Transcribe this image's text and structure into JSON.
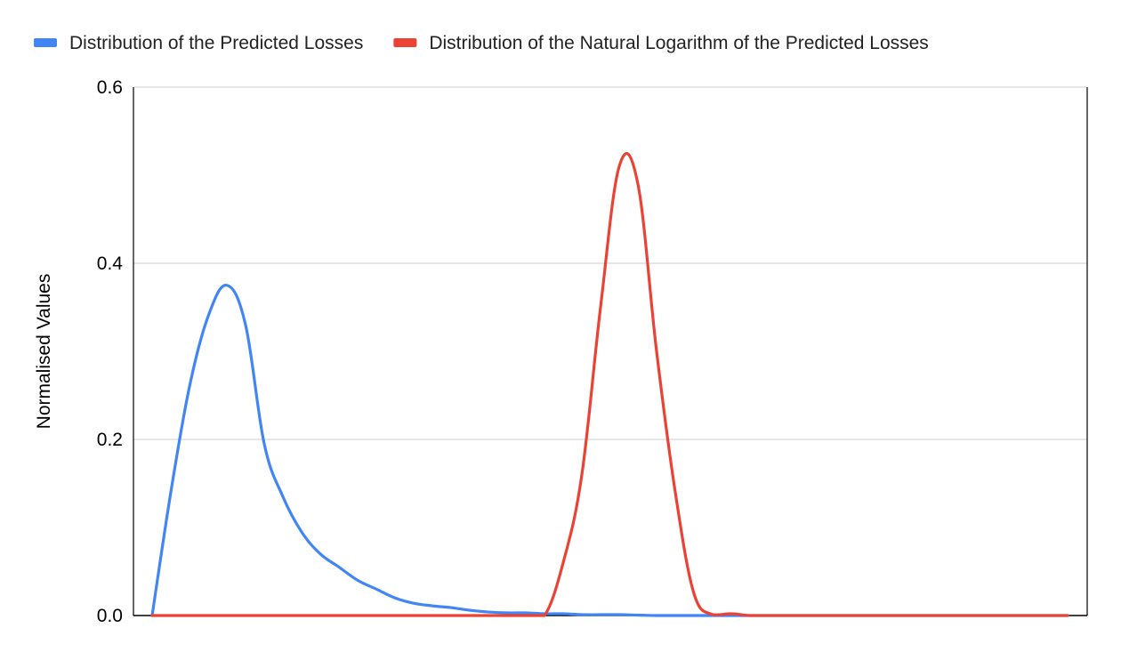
{
  "chart_data": {
    "type": "line",
    "title": "",
    "xlabel": "",
    "ylabel": "Normalised Values",
    "ylim": [
      0,
      0.6
    ],
    "yticks": [
      "0.0",
      "0.2",
      "0.4",
      "0.6"
    ],
    "grid": true,
    "legend_position": "top-left",
    "series": [
      {
        "name": "Distribution of the Predicted Losses",
        "color": "#4285f4",
        "values": [
          0,
          0.14,
          0.26,
          0.34,
          0.375,
          0.33,
          0.195,
          0.135,
          0.095,
          0.07,
          0.055,
          0.04,
          0.03,
          0.02,
          0.014,
          0.011,
          0.009,
          0.006,
          0.004,
          0.003,
          0.003,
          0.002,
          0.002,
          0.001,
          0.001,
          0.001,
          0.0005,
          0,
          0,
          0,
          0,
          0,
          0,
          0,
          0,
          0,
          0,
          0,
          0,
          0,
          0,
          0,
          0,
          0,
          0,
          0,
          0,
          0,
          0,
          0
        ]
      },
      {
        "name": "Distribution of the Natural Logarithm of the Predicted Losses",
        "color": "#ea4335",
        "values": [
          0,
          0,
          0,
          0,
          0,
          0,
          0,
          0,
          0,
          0,
          0,
          0,
          0,
          0,
          0,
          0,
          0,
          0,
          0,
          0,
          0,
          0,
          0.06,
          0.16,
          0.35,
          0.51,
          0.49,
          0.3,
          0.14,
          0.025,
          0.001,
          0.002,
          0,
          0,
          0,
          0,
          0,
          0,
          0,
          0,
          0,
          0,
          0,
          0,
          0,
          0,
          0,
          0,
          0,
          0
        ]
      }
    ]
  }
}
